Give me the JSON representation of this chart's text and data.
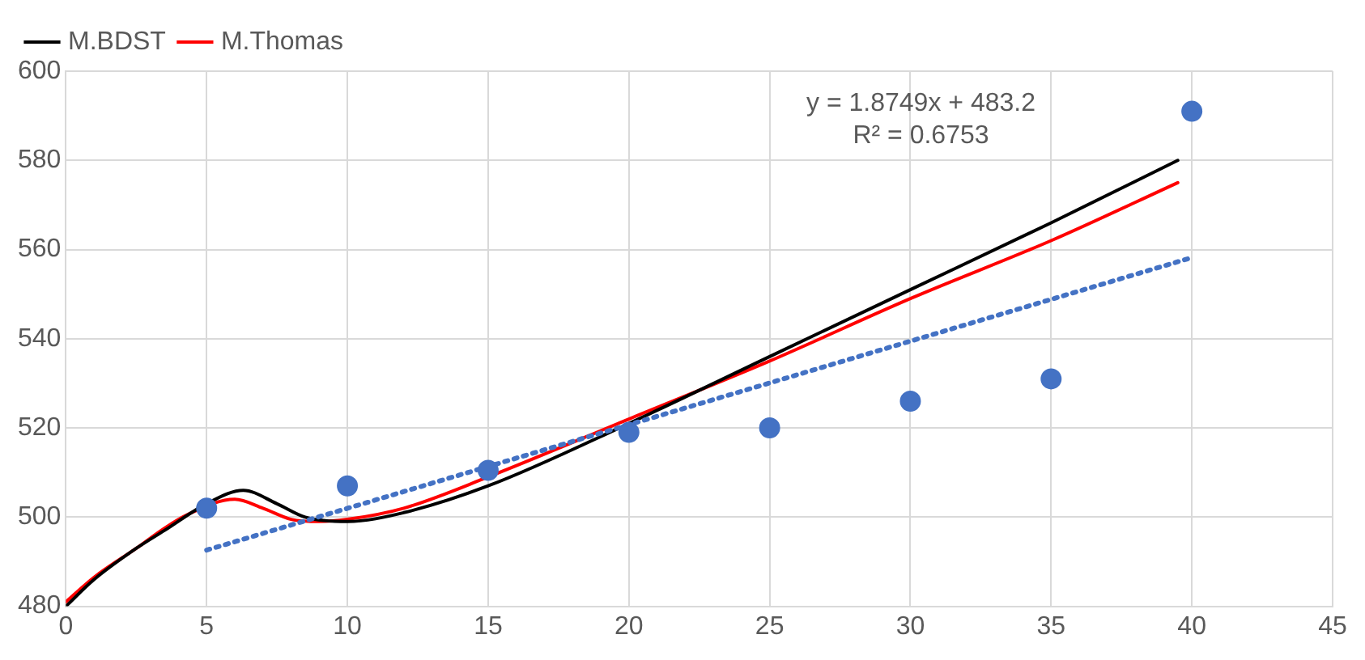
{
  "chart_data": {
    "type": "line",
    "xlim": [
      0,
      45
    ],
    "xticks": [
      0,
      5,
      10,
      15,
      20,
      25,
      30,
      35,
      40,
      45
    ],
    "ylim": [
      480,
      600
    ],
    "yticks": [
      480,
      500,
      520,
      540,
      560,
      580,
      600
    ],
    "grid": true,
    "legend": "top left",
    "marker": "none",
    "annotations": [
      "y = 1.8749x + 483.2",
      "R² = 0.6753"
    ],
    "series": [
      {
        "type": "scatter",
        "color": "#4472c4",
        "marker": "circle",
        "x": [
          5,
          10,
          15,
          20,
          25,
          30,
          35,
          40
        ],
        "values": [
          502,
          507,
          510.5,
          519,
          520,
          526,
          531,
          591
        ]
      },
      {
        "color": "#4472c4",
        "line_style": "dotted",
        "x": [
          5,
          40
        ],
        "values": [
          492.6,
          558.2
        ]
      },
      {
        "name": "M.BDST",
        "color": "#000000",
        "line_style": "solid",
        "x": [
          0,
          1,
          2.5,
          3.5,
          5,
          6.3,
          7.5,
          8.5,
          10,
          12,
          15,
          20,
          25,
          30,
          35,
          39.5
        ],
        "values": [
          480,
          486,
          493,
          497,
          503,
          506,
          503,
          500,
          499,
          501,
          507,
          521,
          536,
          551,
          566,
          580
        ]
      },
      {
        "name": "M.Thomas",
        "color": "#ff0000",
        "line_style": "solid",
        "x": [
          0,
          1,
          2.5,
          3.5,
          4.3,
          6,
          7,
          8,
          9,
          10,
          12,
          15,
          20,
          25,
          30,
          35,
          39.5
        ],
        "values": [
          481,
          486.5,
          493,
          497.5,
          500.5,
          504,
          502,
          499.5,
          499,
          499.5,
          502,
          509,
          522,
          535,
          549,
          562,
          575
        ]
      }
    ]
  }
}
